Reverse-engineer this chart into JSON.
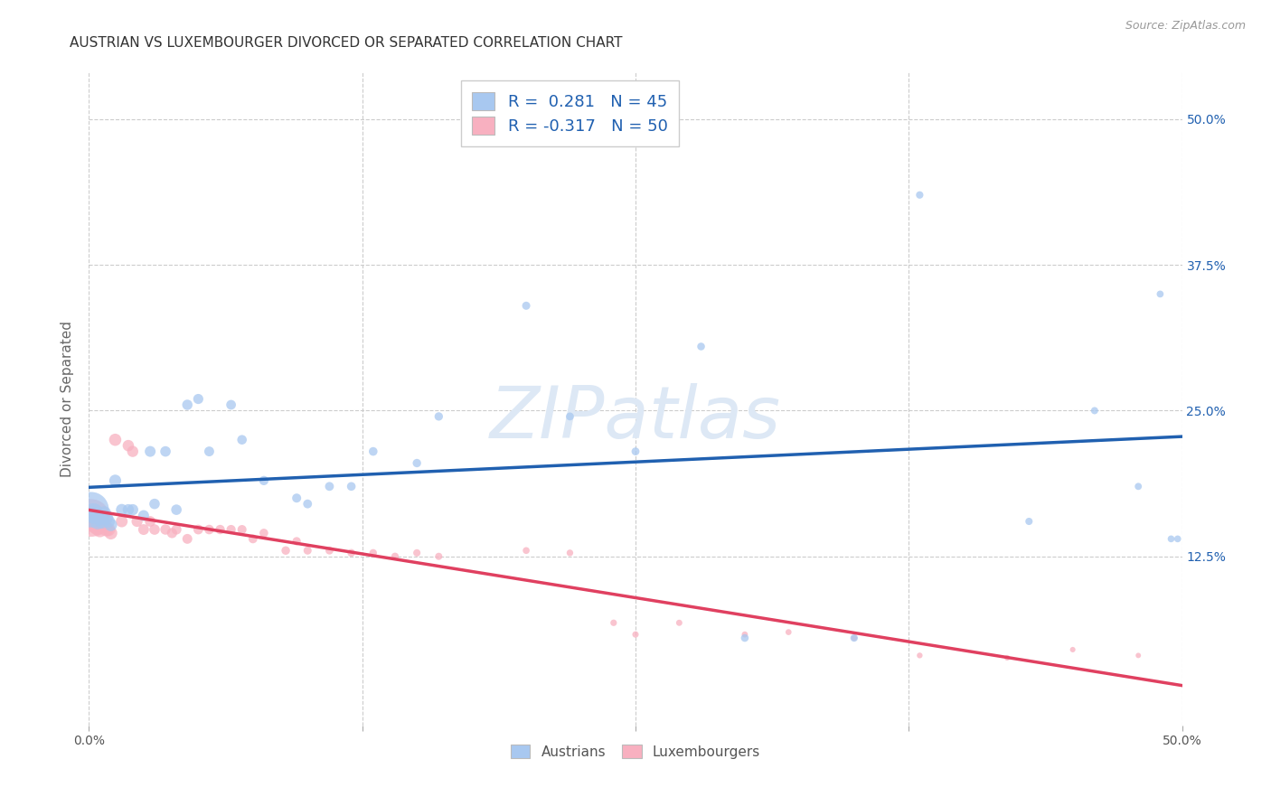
{
  "title": "AUSTRIAN VS LUXEMBOURGER DIVORCED OR SEPARATED CORRELATION CHART",
  "source": "Source: ZipAtlas.com",
  "ylabel": "Divorced or Separated",
  "legend_r_austrians": "R =  0.281",
  "legend_n_austrians": "N = 45",
  "legend_r_luxembourgers": "R = -0.317",
  "legend_n_luxembourgers": "N = 50",
  "xlim": [
    0.0,
    0.5
  ],
  "ylim": [
    -0.02,
    0.54
  ],
  "xtick_positions": [
    0.0,
    0.125,
    0.25,
    0.375,
    0.5
  ],
  "ytick_positions": [
    0.125,
    0.25,
    0.375,
    0.5
  ],
  "ytick_labels": [
    "12.5%",
    "25.0%",
    "37.5%",
    "50.0%"
  ],
  "color_austrians": "#a8c8f0",
  "color_luxembourgers": "#f8b0c0",
  "line_color_austrians": "#2060b0",
  "line_color_luxembourgers": "#e04060",
  "watermark_color": "#dde8f5",
  "austrians_x": [
    0.001,
    0.002,
    0.003,
    0.004,
    0.005,
    0.006,
    0.007,
    0.008,
    0.009,
    0.01,
    0.012,
    0.015,
    0.018,
    0.02,
    0.025,
    0.028,
    0.03,
    0.035,
    0.04,
    0.045,
    0.05,
    0.055,
    0.065,
    0.07,
    0.08,
    0.095,
    0.1,
    0.11,
    0.12,
    0.13,
    0.15,
    0.16,
    0.2,
    0.22,
    0.25,
    0.28,
    0.3,
    0.35,
    0.38,
    0.43,
    0.46,
    0.48,
    0.49,
    0.495,
    0.498
  ],
  "austrians_y": [
    0.165,
    0.162,
    0.16,
    0.155,
    0.158,
    0.155,
    0.162,
    0.158,
    0.155,
    0.152,
    0.19,
    0.165,
    0.165,
    0.165,
    0.16,
    0.215,
    0.17,
    0.215,
    0.165,
    0.255,
    0.26,
    0.215,
    0.255,
    0.225,
    0.19,
    0.175,
    0.17,
    0.185,
    0.185,
    0.215,
    0.205,
    0.245,
    0.34,
    0.245,
    0.215,
    0.305,
    0.055,
    0.055,
    0.435,
    0.155,
    0.25,
    0.185,
    0.35,
    0.14,
    0.14
  ],
  "austrians_sizes": [
    800,
    250,
    180,
    160,
    140,
    130,
    120,
    110,
    100,
    100,
    90,
    85,
    80,
    80,
    75,
    75,
    70,
    70,
    70,
    68,
    65,
    62,
    60,
    58,
    55,
    52,
    50,
    50,
    48,
    48,
    45,
    45,
    42,
    40,
    40,
    38,
    38,
    36,
    35,
    34,
    33,
    32,
    31,
    30,
    30
  ],
  "luxembourgers_x": [
    0.001,
    0.002,
    0.003,
    0.004,
    0.005,
    0.006,
    0.007,
    0.008,
    0.009,
    0.01,
    0.012,
    0.015,
    0.018,
    0.02,
    0.022,
    0.025,
    0.028,
    0.03,
    0.035,
    0.038,
    0.04,
    0.045,
    0.05,
    0.055,
    0.06,
    0.065,
    0.07,
    0.075,
    0.08,
    0.09,
    0.095,
    0.1,
    0.11,
    0.12,
    0.13,
    0.14,
    0.15,
    0.16,
    0.2,
    0.22,
    0.24,
    0.25,
    0.27,
    0.3,
    0.32,
    0.35,
    0.38,
    0.42,
    0.45,
    0.48
  ],
  "luxembourgers_y": [
    0.158,
    0.155,
    0.152,
    0.15,
    0.148,
    0.155,
    0.152,
    0.148,
    0.148,
    0.145,
    0.225,
    0.155,
    0.22,
    0.215,
    0.155,
    0.148,
    0.155,
    0.148,
    0.148,
    0.145,
    0.148,
    0.14,
    0.148,
    0.148,
    0.148,
    0.148,
    0.148,
    0.14,
    0.145,
    0.13,
    0.138,
    0.13,
    0.13,
    0.128,
    0.128,
    0.125,
    0.128,
    0.125,
    0.13,
    0.128,
    0.068,
    0.058,
    0.068,
    0.058,
    0.06,
    0.055,
    0.04,
    0.038,
    0.045,
    0.04
  ],
  "luxembourgers_sizes": [
    900,
    280,
    200,
    170,
    150,
    140,
    130,
    120,
    110,
    105,
    95,
    88,
    82,
    80,
    78,
    74,
    72,
    70,
    68,
    66,
    64,
    62,
    60,
    58,
    56,
    54,
    52,
    50,
    48,
    46,
    44,
    42,
    40,
    38,
    36,
    35,
    34,
    33,
    30,
    28,
    27,
    26,
    25,
    24,
    23,
    22,
    21,
    20,
    19,
    18
  ]
}
